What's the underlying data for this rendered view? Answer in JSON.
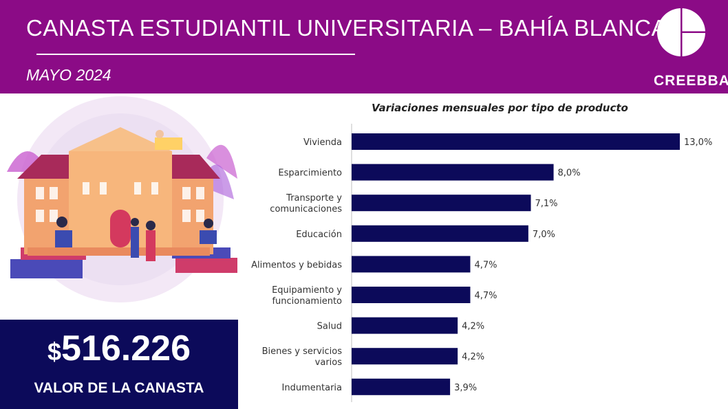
{
  "header": {
    "title": "CANASTA ESTUDIANTIL UNIVERSITARIA – BAHÍA BLANCA",
    "subtitle": "MAYO 2024",
    "logo_name": "CREEBBA"
  },
  "value_box": {
    "currency": "$",
    "amount": "516.226",
    "label": "VALOR DE LA CANASTA"
  },
  "colors": {
    "header_bg": "#8b0b86",
    "bar": "#0c0a5a",
    "value_box_bg": "#0c0a5a"
  },
  "chart_data": {
    "type": "bar",
    "orientation": "horizontal",
    "title": "Variaciones mensuales por tipo de producto",
    "categories": [
      [
        "Vivienda"
      ],
      [
        "Esparcimiento"
      ],
      [
        "Transporte y",
        "comunicaciones"
      ],
      [
        "Educación"
      ],
      [
        "Alimentos y bebidas"
      ],
      [
        "Equipamiento y",
        "funcionamiento"
      ],
      [
        "Salud"
      ],
      [
        "Bienes y servicios",
        "varios"
      ],
      [
        "Indumentaria"
      ]
    ],
    "values": [
      13.0,
      8.0,
      7.1,
      7.0,
      4.7,
      4.7,
      4.2,
      4.2,
      3.9
    ],
    "value_labels": [
      "13,0%",
      "8,0%",
      "7,1%",
      "7,0%",
      "4,7%",
      "4,7%",
      "4,2%",
      "4,2%",
      "3,9%"
    ],
    "xlim": [
      0,
      13.0
    ],
    "grid": false
  }
}
